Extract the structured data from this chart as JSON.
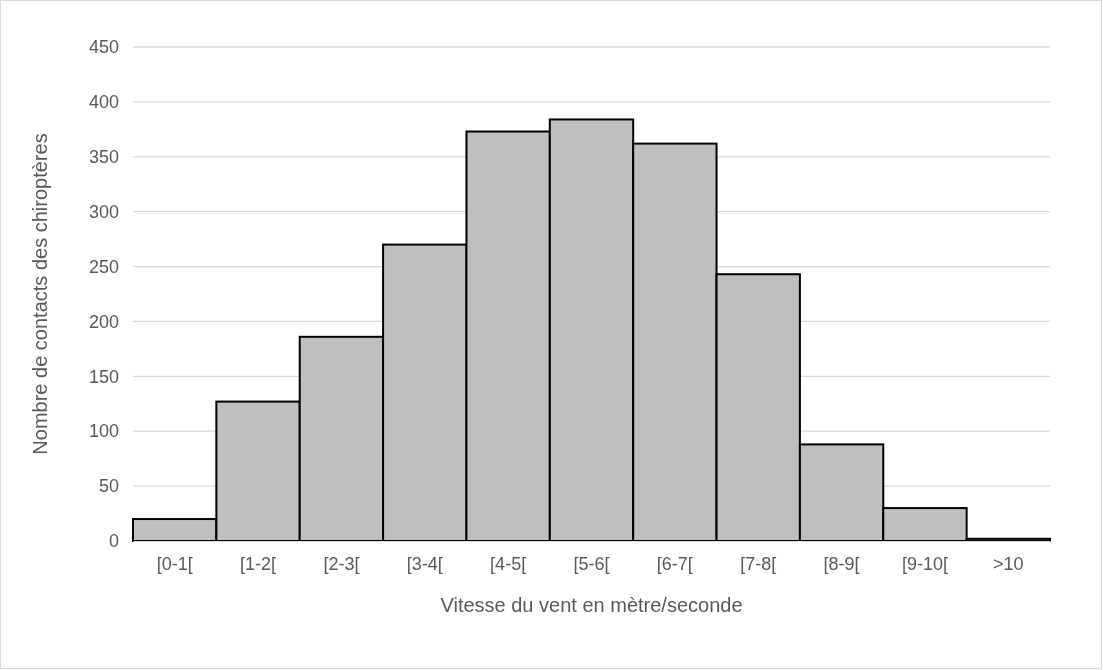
{
  "chart_data": {
    "type": "bar",
    "xlabel": "Vitesse du vent en mètre/seconde",
    "ylabel": "Nombre de contacts des chiroptères",
    "categories": [
      "[0-1[",
      "[1-2[",
      "[2-3[",
      "[3-4[",
      "[4-5[",
      "[5-6[",
      "[6-7[",
      "[7-8[",
      "[8-9[",
      "[9-10[",
      ">10"
    ],
    "values": [
      20,
      127,
      186,
      270,
      373,
      384,
      362,
      243,
      88,
      30,
      2
    ],
    "color": "#bfbfbf",
    "ylim": [
      0,
      450
    ],
    "yticks": [
      0,
      50,
      100,
      150,
      200,
      250,
      300,
      350,
      400,
      450
    ],
    "grid": "y"
  }
}
